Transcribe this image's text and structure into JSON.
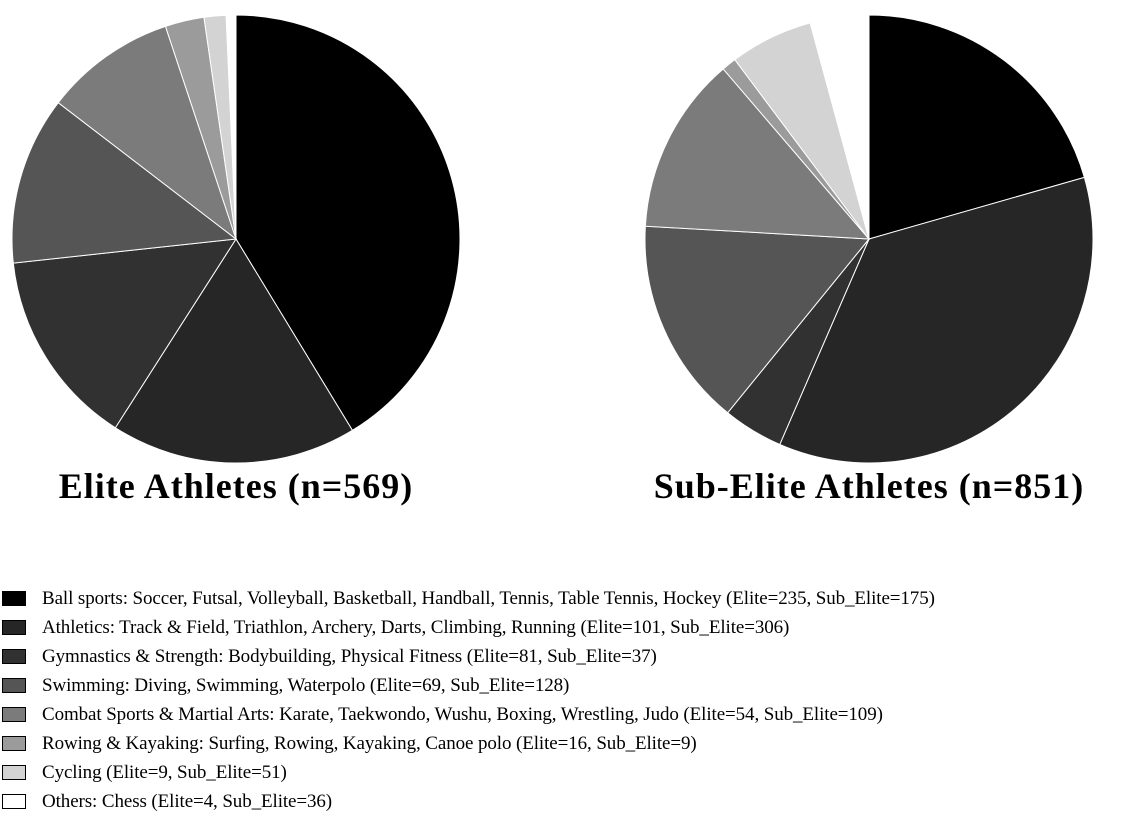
{
  "chart_data": {
    "type": "pie",
    "categories": [
      "Ball sports: Soccer, Futsal, Volleyball, Basketball, Handball, Tennis, Table Tennis, Hockey (Elite=235, Sub_Elite=175)",
      "Athletics: Track & Field, Triathlon, Archery, Darts, Climbing, Running (Elite=101, Sub_Elite=306)",
      "Gymnastics  & Strength: Bodybuilding, Physical Fitness (Elite=81, Sub_Elite=37)",
      "Swimming: Diving, Swimming,  Waterpolo (Elite=69, Sub_Elite=128)",
      "Combat Sports &  Martial Arts: Karate, Taekwondo, Wushu, Boxing, Wrestling, Judo (Elite=54, Sub_Elite=109)",
      "Rowing & Kayaking: Surfing, Rowing, Kayaking, Canoe polo (Elite=16, Sub_Elite=9)",
      "Cycling (Elite=9, Sub_Elite=51)",
      "Others: Chess (Elite=4, Sub_Elite=36)"
    ],
    "colors": [
      "#000000",
      "#262626",
      "#313131",
      "#555555",
      "#7b7b7b",
      "#9b9b9b",
      "#d3d3d3",
      "#ffffff"
    ],
    "pies": [
      {
        "title": "Elite Athletes (n=569)",
        "values": [
          235,
          101,
          81,
          69,
          54,
          16,
          9,
          4
        ]
      },
      {
        "title": "Sub-Elite Athletes (n=851)",
        "values": [
          175,
          306,
          37,
          128,
          109,
          9,
          51,
          36
        ]
      }
    ],
    "legend_position": "bottom-left"
  }
}
